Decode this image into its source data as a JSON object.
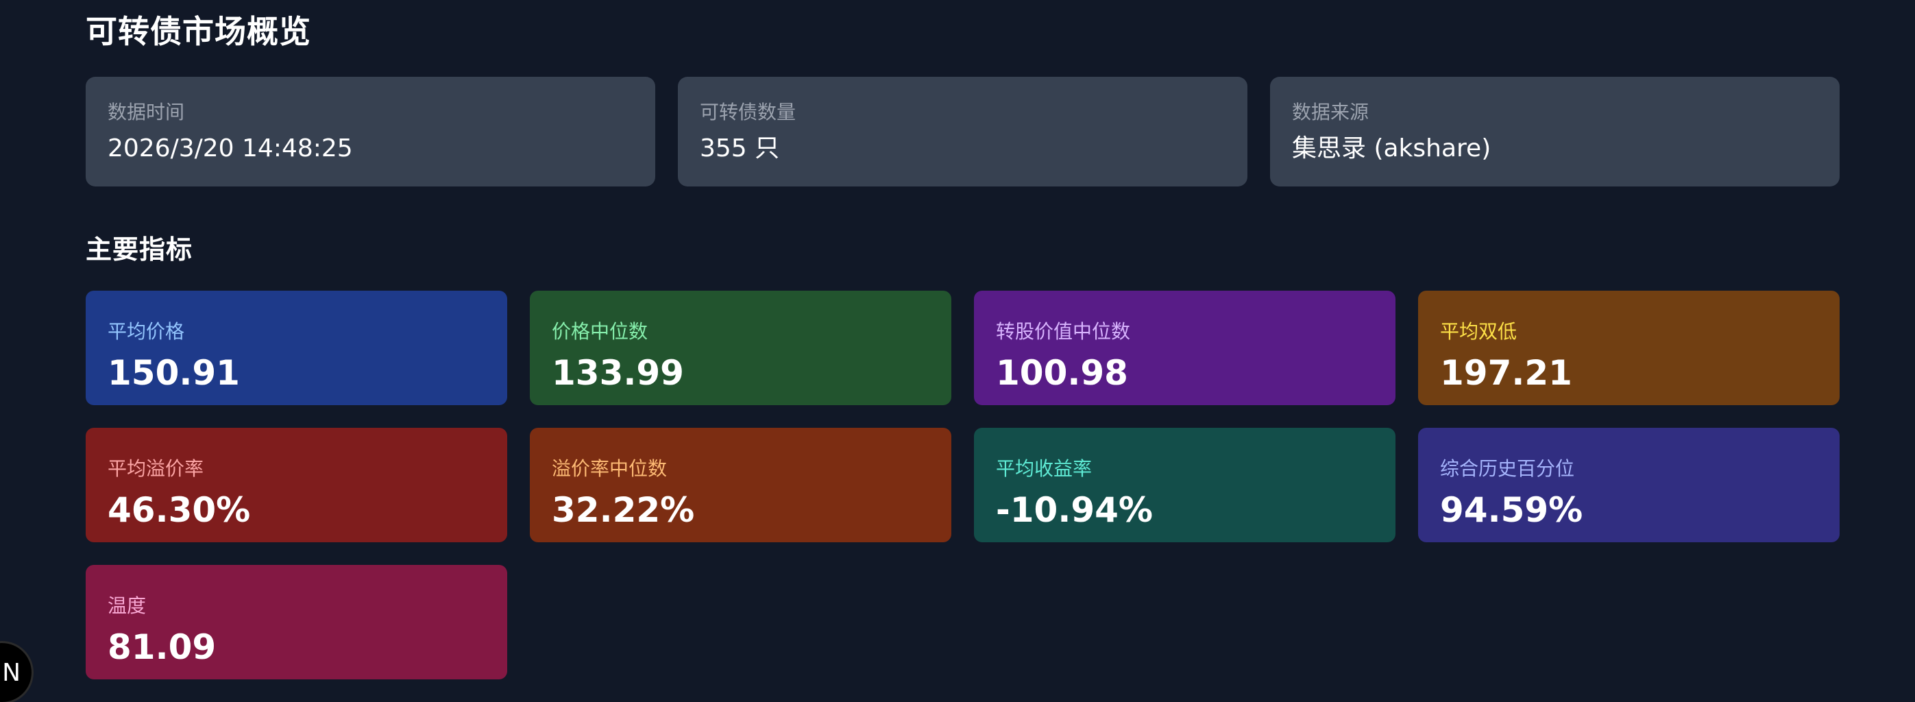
{
  "page": {
    "title": "可转债市场概览"
  },
  "info": {
    "items": [
      {
        "label": "数据时间",
        "value": "2026/3/20 14:48:25"
      },
      {
        "label": "可转债数量",
        "value": "355 只"
      },
      {
        "label": "数据来源",
        "value": "集思录 (akshare)"
      }
    ]
  },
  "metrics": {
    "title": "主要指标",
    "items": [
      {
        "label": "平均价格",
        "value": "150.91",
        "bg": "#1e3a8a",
        "label_color": "#93c5fd"
      },
      {
        "label": "价格中位数",
        "value": "133.99",
        "bg": "#22542e",
        "label_color": "#86efac"
      },
      {
        "label": "转股价值中位数",
        "value": "100.98",
        "bg": "#581c87",
        "label_color": "#d8b4fe"
      },
      {
        "label": "平均双低",
        "value": "197.21",
        "bg": "#713f12",
        "label_color": "#fde047"
      },
      {
        "label": "平均溢价率",
        "value": "46.30%",
        "bg": "#7f1d1d",
        "label_color": "#fca5a5"
      },
      {
        "label": "溢价率中位数",
        "value": "32.22%",
        "bg": "#7c2d12",
        "label_color": "#fdba74"
      },
      {
        "label": "平均收益率",
        "value": "-10.94%",
        "bg": "#134e4a",
        "label_color": "#5eead4"
      },
      {
        "label": "综合历史百分位",
        "value": "94.59%",
        "bg": "#312e81",
        "label_color": "#a5b4fc"
      },
      {
        "label": "温度",
        "value": "81.09",
        "bg": "#831843",
        "label_color": "#f9a8d4"
      }
    ]
  },
  "overlay": {
    "badge_letter": "N"
  }
}
